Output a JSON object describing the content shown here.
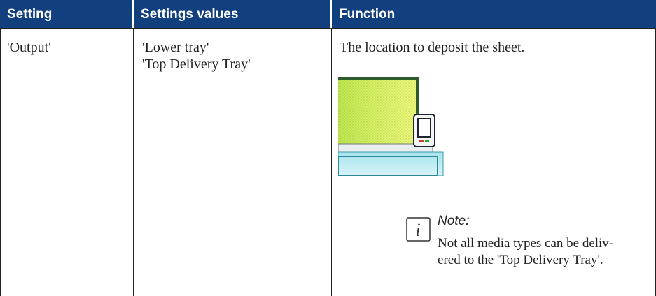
{
  "table": {
    "header": [
      "Setting",
      "Settings values",
      "Function"
    ],
    "rows": [
      {
        "setting": "'Output'",
        "values": [
          "'Lower tray'",
          "'Top Delivery Tray'"
        ],
        "function": "The location to deposit the sheet.",
        "note": {
          "title": "Note:",
          "lines": [
            "Not all media types can be deliv-",
            "ered to the 'Top Delivery Tray'."
          ]
        }
      }
    ]
  }
}
